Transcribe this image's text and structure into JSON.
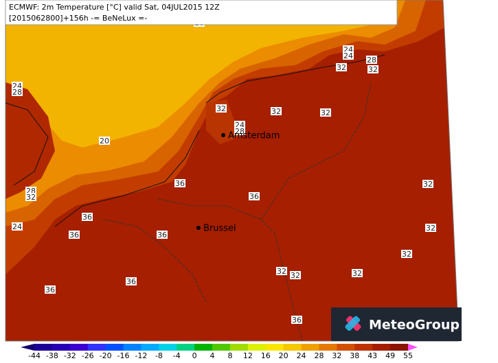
{
  "header": {
    "line1": "ECMWF: 2m Temperature [°C] valid Sat, 04JUL2015 12Z",
    "line2": "[2015062800]+156h -= BeNeLux =-"
  },
  "cities": [
    "Amsterdam",
    "Brussel"
  ],
  "contour_labels": [
    18,
    24,
    24,
    28,
    32,
    32,
    24,
    28,
    32,
    32,
    32,
    24,
    28,
    20,
    32,
    36,
    28,
    32,
    36,
    24,
    36,
    32,
    36,
    36,
    32,
    32,
    32,
    32,
    36,
    36,
    36
  ],
  "colorbar": {
    "ticks": [
      -44,
      -38,
      -32,
      -26,
      -20,
      -16,
      -12,
      -8,
      -4,
      0,
      4,
      8,
      12,
      16,
      20,
      24,
      28,
      32,
      38,
      43,
      49,
      55
    ],
    "colors": [
      "#14006e",
      "#1e0096",
      "#2800b4",
      "#3c00d2",
      "#3232ff",
      "#0050ff",
      "#0082ff",
      "#00aaff",
      "#00d2e6",
      "#00d282",
      "#00b400",
      "#50c800",
      "#a0dc00",
      "#dcf000",
      "#fae600",
      "#f5c800",
      "#f0a000",
      "#e67800",
      "#d25000",
      "#be3200",
      "#a51e00",
      "#8c1400",
      "#b4005a",
      "#dc0096",
      "#ff50ff"
    ]
  },
  "logo": "MeteoGroup"
}
